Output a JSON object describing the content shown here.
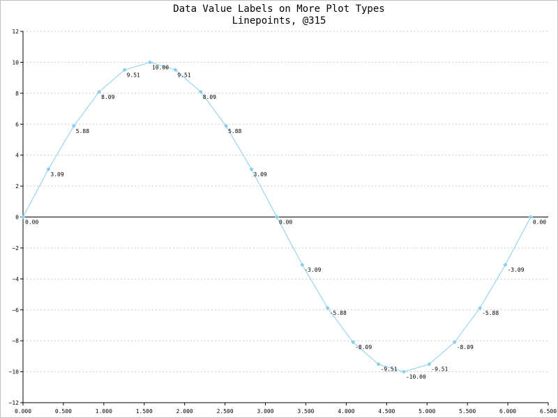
{
  "chart_data": {
    "type": "line",
    "title": "Data Value Labels on More Plot Types",
    "subtitle": "Linepoints, @315",
    "xlabel": "",
    "ylabel": "",
    "xlim": [
      0,
      6.5
    ],
    "ylim": [
      -12,
      12
    ],
    "x_ticks": [
      "0.000",
      "0.500",
      "1.000",
      "1.500",
      "2.000",
      "2.500",
      "3.000",
      "3.500",
      "4.000",
      "4.500",
      "5.000",
      "5.500",
      "6.000",
      "6.500"
    ],
    "y_ticks": [
      "12",
      "10",
      "8",
      "6",
      "4",
      "2",
      "0",
      "−2",
      "−4",
      "−6",
      "−8",
      "−10",
      "−12"
    ],
    "grid": true,
    "line_color": "#87ceeb",
    "series": [
      {
        "x": [
          0,
          0.314,
          0.628,
          0.942,
          1.257,
          1.571,
          1.885,
          2.199,
          2.513,
          2.827,
          3.142,
          3.456,
          3.77,
          4.084,
          4.398,
          4.712,
          5.027,
          5.341,
          5.655,
          5.969,
          6.283
        ],
        "y": [
          0,
          3.09,
          5.88,
          8.09,
          9.51,
          10,
          9.51,
          8.09,
          5.88,
          3.09,
          0,
          -3.09,
          -5.88,
          -8.09,
          -9.51,
          -10,
          -9.51,
          -8.09,
          -5.88,
          -3.09,
          0
        ],
        "labels": [
          "0.00",
          "3.09",
          "5.88",
          "8.09",
          "9.51",
          "10.00",
          "9.51",
          "8.09",
          "5.88",
          "3.09",
          "0.00",
          "-3.09",
          "-5.88",
          "-8.09",
          "-9.51",
          "-10.00",
          "-9.51",
          "-8.09",
          "-5.88",
          "-3.09",
          "0.00"
        ]
      }
    ]
  }
}
